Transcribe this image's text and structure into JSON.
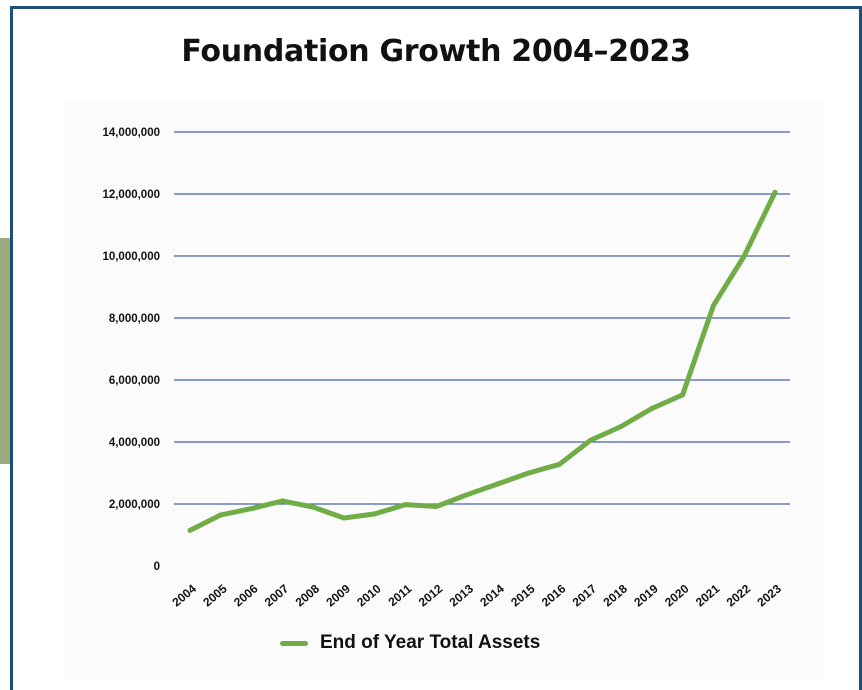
{
  "chart_data": {
    "type": "line",
    "title": "Foundation Growth 2004–2023",
    "xlabel": "",
    "ylabel": "",
    "categories": [
      "2004",
      "2005",
      "2006",
      "2007",
      "2008",
      "2009",
      "2010",
      "2011",
      "2012",
      "2013",
      "2014",
      "2015",
      "2016",
      "2017",
      "2018",
      "2019",
      "2020",
      "2021",
      "2022",
      "2023"
    ],
    "series": [
      {
        "name": "End of Year Total Assets",
        "values": [
          1150000,
          1650000,
          1850000,
          2100000,
          1900000,
          1550000,
          1680000,
          1980000,
          1920000,
          2300000,
          2650000,
          3000000,
          3280000,
          4050000,
          4500000,
          5080000,
          5520000,
          8400000,
          10000000,
          12050000
        ]
      }
    ],
    "ylim": [
      0,
      14000000
    ],
    "yticks": [
      0,
      2000000,
      4000000,
      6000000,
      8000000,
      10000000,
      12000000,
      14000000
    ],
    "ytick_labels": [
      "0",
      "2,000,000",
      "4,000,000",
      "6,000,000",
      "8,000,000",
      "10,000,000",
      "12,000,000",
      "14,000,000"
    ],
    "grid": true,
    "legend_position": "bottom-center",
    "colors": {
      "line": "#70ad47",
      "grid": "#4a5fa8",
      "frame": "#1f4e79"
    }
  }
}
